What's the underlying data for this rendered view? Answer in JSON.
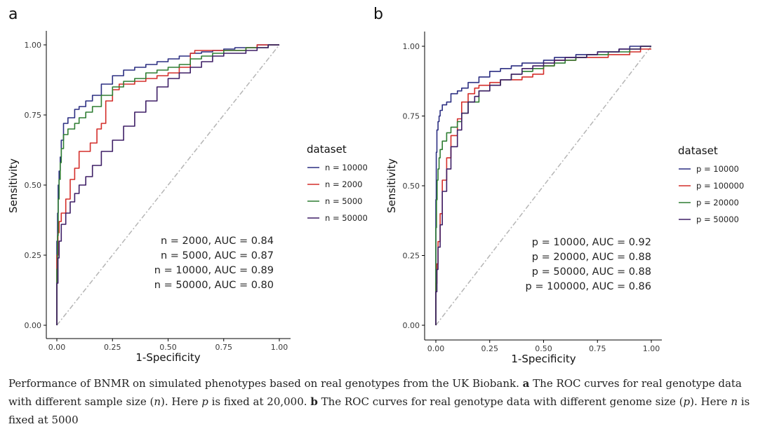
{
  "colors": {
    "blue": "#2c2f82",
    "red": "#d42e2a",
    "green": "#2e7d32",
    "purple": "#3e1f66",
    "diagonal": "#b5b5b5",
    "axis": "#000000",
    "tick_text": "#3a3a3a"
  },
  "chart_data": [
    {
      "type": "line",
      "panel_label": "a",
      "xlabel": "1-Specificity",
      "ylabel": "Sensitivity",
      "xlim": [
        0,
        1
      ],
      "ylim": [
        0,
        1
      ],
      "xticks": [
        "0.00",
        "0.25",
        "0.50",
        "0.75",
        "1.00"
      ],
      "yticks": [
        "0.00",
        "0.25",
        "0.50",
        "0.75",
        "1.00"
      ],
      "grid": false,
      "legend_title": "dataset",
      "legend_position": "right",
      "reference_line": "diagonal",
      "series": [
        {
          "name": "n = 10000",
          "color": "#2c2f82",
          "x": [
            0,
            0.003,
            0.006,
            0.01,
            0.015,
            0.02,
            0.03,
            0.05,
            0.08,
            0.1,
            0.13,
            0.16,
            0.2,
            0.25,
            0.3,
            0.35,
            0.4,
            0.45,
            0.5,
            0.55,
            0.6,
            0.65,
            0.7,
            0.75,
            0.8,
            0.85,
            0.9,
            0.95,
            1.0
          ],
          "y": [
            0,
            0.3,
            0.4,
            0.5,
            0.55,
            0.6,
            0.66,
            0.72,
            0.74,
            0.77,
            0.78,
            0.8,
            0.82,
            0.86,
            0.89,
            0.91,
            0.92,
            0.93,
            0.94,
            0.95,
            0.96,
            0.97,
            0.975,
            0.98,
            0.985,
            0.99,
            0.99,
            1.0,
            1.0
          ]
        },
        {
          "name": "n = 2000",
          "color": "#d42e2a",
          "x": [
            0,
            0.005,
            0.01,
            0.02,
            0.04,
            0.06,
            0.08,
            0.1,
            0.12,
            0.15,
            0.18,
            0.2,
            0.22,
            0.25,
            0.28,
            0.3,
            0.35,
            0.4,
            0.45,
            0.5,
            0.55,
            0.6,
            0.62,
            0.65,
            0.7,
            0.75,
            0.8,
            0.85,
            0.9,
            0.95,
            1.0
          ],
          "y": [
            0,
            0.25,
            0.33,
            0.37,
            0.4,
            0.45,
            0.52,
            0.56,
            0.62,
            0.62,
            0.65,
            0.7,
            0.72,
            0.8,
            0.84,
            0.86,
            0.86,
            0.87,
            0.88,
            0.89,
            0.9,
            0.92,
            0.97,
            0.98,
            0.98,
            0.98,
            0.98,
            0.98,
            0.99,
            1.0,
            1.0
          ]
        },
        {
          "name": "n = 5000",
          "color": "#2e7d32",
          "x": [
            0,
            0.003,
            0.006,
            0.01,
            0.015,
            0.02,
            0.03,
            0.05,
            0.08,
            0.1,
            0.13,
            0.16,
            0.2,
            0.25,
            0.3,
            0.35,
            0.4,
            0.45,
            0.5,
            0.55,
            0.6,
            0.65,
            0.7,
            0.75,
            0.8,
            0.85,
            0.9,
            0.95,
            1.0
          ],
          "y": [
            0,
            0.2,
            0.32,
            0.45,
            0.52,
            0.58,
            0.63,
            0.68,
            0.7,
            0.72,
            0.74,
            0.76,
            0.78,
            0.82,
            0.85,
            0.87,
            0.88,
            0.9,
            0.91,
            0.92,
            0.93,
            0.95,
            0.96,
            0.97,
            0.98,
            0.98,
            0.99,
            0.99,
            1.0
          ]
        },
        {
          "name": "n = 50000",
          "color": "#3e1f66",
          "x": [
            0,
            0.005,
            0.01,
            0.02,
            0.04,
            0.06,
            0.08,
            0.1,
            0.13,
            0.16,
            0.2,
            0.25,
            0.3,
            0.35,
            0.4,
            0.45,
            0.5,
            0.55,
            0.6,
            0.65,
            0.7,
            0.75,
            0.8,
            0.85,
            0.9,
            0.95,
            1.0
          ],
          "y": [
            0,
            0.15,
            0.24,
            0.3,
            0.36,
            0.4,
            0.44,
            0.47,
            0.5,
            0.53,
            0.57,
            0.62,
            0.66,
            0.71,
            0.76,
            0.8,
            0.85,
            0.88,
            0.9,
            0.92,
            0.94,
            0.96,
            0.97,
            0.97,
            0.98,
            0.99,
            1.0
          ]
        }
      ],
      "annotations": [
        "n = 2000, AUC = 0.84",
        "n = 5000, AUC = 0.87",
        "n = 10000, AUC = 0.89",
        "n = 50000, AUC = 0.80"
      ]
    },
    {
      "type": "line",
      "panel_label": "b",
      "xlabel": "1-Specificity",
      "ylabel": "Sensitivity",
      "xlim": [
        0,
        1
      ],
      "ylim": [
        0,
        1
      ],
      "xticks": [
        "0.00",
        "0.25",
        "0.50",
        "0.75",
        "1.00"
      ],
      "yticks": [
        "0.00",
        "0.25",
        "0.50",
        "0.75",
        "1.00"
      ],
      "grid": false,
      "legend_title": "dataset",
      "legend_position": "right",
      "reference_line": "diagonal",
      "series": [
        {
          "name": "p = 10000",
          "color": "#2c2f82",
          "x": [
            0,
            0.002,
            0.005,
            0.01,
            0.015,
            0.02,
            0.03,
            0.05,
            0.07,
            0.1,
            0.12,
            0.15,
            0.2,
            0.25,
            0.3,
            0.35,
            0.4,
            0.45,
            0.5,
            0.55,
            0.6,
            0.65,
            0.7,
            0.75,
            0.8,
            0.85,
            0.9,
            0.95,
            1.0
          ],
          "y": [
            0,
            0.45,
            0.62,
            0.7,
            0.73,
            0.75,
            0.77,
            0.79,
            0.8,
            0.83,
            0.84,
            0.85,
            0.87,
            0.89,
            0.91,
            0.92,
            0.93,
            0.94,
            0.94,
            0.95,
            0.96,
            0.96,
            0.97,
            0.97,
            0.98,
            0.98,
            0.99,
            1.0,
            1.0
          ]
        },
        {
          "name": "p = 100000",
          "color": "#d42e2a",
          "x": [
            0,
            0.005,
            0.01,
            0.02,
            0.03,
            0.05,
            0.07,
            0.1,
            0.12,
            0.15,
            0.18,
            0.2,
            0.25,
            0.3,
            0.35,
            0.4,
            0.45,
            0.5,
            0.55,
            0.6,
            0.65,
            0.7,
            0.75,
            0.8,
            0.85,
            0.9,
            0.95,
            1.0
          ],
          "y": [
            0,
            0.15,
            0.22,
            0.3,
            0.4,
            0.52,
            0.6,
            0.68,
            0.74,
            0.8,
            0.83,
            0.85,
            0.86,
            0.87,
            0.88,
            0.88,
            0.89,
            0.9,
            0.93,
            0.95,
            0.95,
            0.96,
            0.96,
            0.96,
            0.97,
            0.97,
            0.98,
            0.99
          ]
        },
        {
          "name": "p = 20000",
          "color": "#2e7d32",
          "x": [
            0,
            0.003,
            0.006,
            0.01,
            0.015,
            0.02,
            0.03,
            0.05,
            0.07,
            0.1,
            0.12,
            0.15,
            0.2,
            0.25,
            0.3,
            0.35,
            0.4,
            0.45,
            0.5,
            0.55,
            0.6,
            0.65,
            0.7,
            0.75,
            0.8,
            0.85,
            0.9,
            0.95,
            1.0
          ],
          "y": [
            0,
            0.35,
            0.45,
            0.52,
            0.56,
            0.6,
            0.63,
            0.66,
            0.69,
            0.71,
            0.73,
            0.76,
            0.8,
            0.84,
            0.86,
            0.88,
            0.9,
            0.91,
            0.92,
            0.93,
            0.94,
            0.95,
            0.96,
            0.97,
            0.97,
            0.98,
            0.98,
            0.99,
            1.0
          ]
        },
        {
          "name": "p = 50000",
          "color": "#3e1f66",
          "x": [
            0,
            0.005,
            0.01,
            0.02,
            0.03,
            0.05,
            0.07,
            0.1,
            0.12,
            0.15,
            0.18,
            0.2,
            0.25,
            0.3,
            0.35,
            0.4,
            0.45,
            0.5,
            0.55,
            0.6,
            0.65,
            0.7,
            0.75,
            0.8,
            0.85,
            0.9,
            0.95,
            1.0
          ],
          "y": [
            0,
            0.12,
            0.2,
            0.28,
            0.36,
            0.48,
            0.56,
            0.64,
            0.7,
            0.76,
            0.8,
            0.82,
            0.84,
            0.86,
            0.88,
            0.9,
            0.92,
            0.93,
            0.94,
            0.95,
            0.96,
            0.96,
            0.97,
            0.98,
            0.98,
            0.99,
            0.99,
            1.0
          ]
        }
      ],
      "annotations": [
        "p = 10000, AUC = 0.92",
        "p = 20000, AUC = 0.88",
        "p = 50000, AUC = 0.88",
        "p = 100000, AUC = 0.86"
      ]
    }
  ],
  "caption": {
    "intro": "Performance of BNMR on simulated phenotypes based on real genotypes from the UK Biobank. ",
    "label_a": "a",
    "text_a_1": " The ROC curves for real genotype data with different sample size (",
    "var_a": "n",
    "text_a_2": "). Here ",
    "fixed_var_a": "p",
    "text_a_3": " is fixed at 20,000. ",
    "label_b": "b",
    "text_b_1": " The ROC curves for real genotype data with different genome size (",
    "var_b": "p",
    "text_b_2": "). Here ",
    "fixed_var_b": "n",
    "text_b_3": " is fixed at 5000"
  }
}
